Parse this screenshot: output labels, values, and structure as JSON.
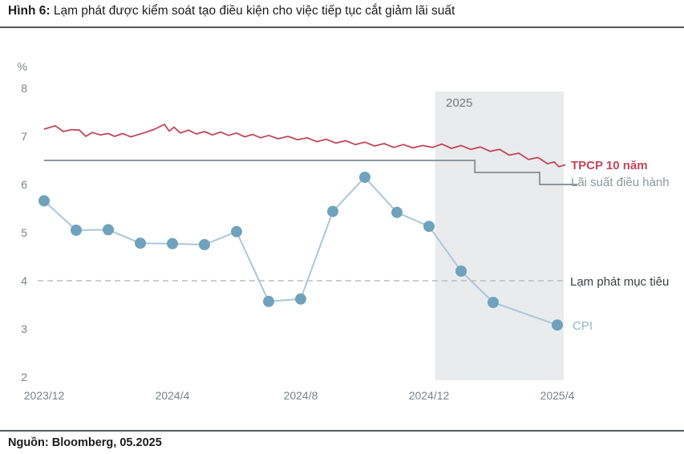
{
  "figure": {
    "label": "Hình 6:",
    "title": " Lạm phát được kiểm soát tạo điều kiện cho việc tiếp tục cắt giảm lãi suất"
  },
  "source": "Nguồn: Bloomberg, 05.2025",
  "theme": {
    "band_fill": "#e9ebed",
    "dash_color": "#b9bdc0",
    "tick_color": "#79828b",
    "rule_color": "#54585b"
  },
  "chart_data": {
    "type": "line",
    "unit_label": "%",
    "ylim": [
      2,
      8
    ],
    "y_ticks": [
      8,
      7,
      6,
      5,
      4,
      3,
      2
    ],
    "x_ticks": [
      {
        "label": "2023/12",
        "month": 0
      },
      {
        "label": "2024/4",
        "month": 4
      },
      {
        "label": "2024/8",
        "month": 8
      },
      {
        "label": "2024/12",
        "month": 12
      },
      {
        "label": "2025/4",
        "month": 16
      }
    ],
    "grid": "off",
    "legend_position": "right-inline",
    "forecast_band": {
      "label": "2025",
      "from_month": 12.19,
      "to_month": 16.2
    },
    "target_line": {
      "label": "Lạm phát mục tiêu",
      "value": 4,
      "from_month": -0.2,
      "to_month": 16.2
    },
    "series": [
      {
        "name": "TPCP 10 năm",
        "type": "line",
        "color": "#c4455a",
        "points": [
          [
            0,
            7.15
          ],
          [
            0.35,
            7.22
          ],
          [
            0.6,
            7.1
          ],
          [
            0.85,
            7.14
          ],
          [
            1.1,
            7.13
          ],
          [
            1.3,
            7.0
          ],
          [
            1.5,
            7.08
          ],
          [
            1.75,
            7.03
          ],
          [
            2,
            7.06
          ],
          [
            2.2,
            7.0
          ],
          [
            2.45,
            7.06
          ],
          [
            2.7,
            6.99
          ],
          [
            2.9,
            7.03
          ],
          [
            3.15,
            7.08
          ],
          [
            3.45,
            7.15
          ],
          [
            3.75,
            7.25
          ],
          [
            3.9,
            7.11
          ],
          [
            4.05,
            7.19
          ],
          [
            4.25,
            7.07
          ],
          [
            4.5,
            7.13
          ],
          [
            4.75,
            7.05
          ],
          [
            5,
            7.1
          ],
          [
            5.25,
            7.03
          ],
          [
            5.5,
            7.09
          ],
          [
            5.75,
            7.02
          ],
          [
            6,
            7.07
          ],
          [
            6.25,
            6.99
          ],
          [
            6.5,
            7.04
          ],
          [
            6.75,
            6.97
          ],
          [
            7,
            7.02
          ],
          [
            7.3,
            6.95
          ],
          [
            7.6,
            7.0
          ],
          [
            7.9,
            6.93
          ],
          [
            8.2,
            6.97
          ],
          [
            8.5,
            6.89
          ],
          [
            8.8,
            6.94
          ],
          [
            9.1,
            6.86
          ],
          [
            9.4,
            6.91
          ],
          [
            9.7,
            6.83
          ],
          [
            10,
            6.88
          ],
          [
            10.3,
            6.8
          ],
          [
            10.6,
            6.85
          ],
          [
            10.9,
            6.77
          ],
          [
            11.2,
            6.83
          ],
          [
            11.5,
            6.76
          ],
          [
            11.8,
            6.81
          ],
          [
            12.1,
            6.77
          ],
          [
            12.4,
            6.84
          ],
          [
            12.7,
            6.75
          ],
          [
            13,
            6.81
          ],
          [
            13.3,
            6.73
          ],
          [
            13.6,
            6.78
          ],
          [
            13.9,
            6.69
          ],
          [
            14.2,
            6.73
          ],
          [
            14.5,
            6.61
          ],
          [
            14.8,
            6.65
          ],
          [
            15.1,
            6.52
          ],
          [
            15.4,
            6.56
          ],
          [
            15.7,
            6.43
          ],
          [
            15.9,
            6.47
          ],
          [
            16.05,
            6.37
          ],
          [
            16.25,
            6.41
          ]
        ]
      },
      {
        "name": "Lãi suất điều hành",
        "type": "step",
        "color": "#8e979d",
        "steps": [
          {
            "from_month": 0,
            "to_month": 13.43,
            "value": 6.5
          },
          {
            "from_month": 13.43,
            "to_month": 15.45,
            "value": 6.25
          },
          {
            "from_month": 15.45,
            "to_month": 16.63,
            "value": 6.0
          }
        ]
      },
      {
        "name": "CPI",
        "type": "line-marker",
        "color": "#6fa2bc",
        "line_color": "#a9c8d7",
        "points": [
          [
            0,
            5.66
          ],
          [
            1,
            5.05
          ],
          [
            2,
            5.06
          ],
          [
            3,
            4.78
          ],
          [
            4,
            4.77
          ],
          [
            5,
            4.75
          ],
          [
            6,
            5.02
          ],
          [
            7,
            3.57
          ],
          [
            8,
            3.62
          ],
          [
            9,
            5.44
          ],
          [
            10,
            6.15
          ],
          [
            11,
            5.42
          ],
          [
            12,
            5.13
          ],
          [
            13,
            4.2
          ],
          [
            14,
            3.55
          ],
          [
            16,
            3.08
          ]
        ]
      }
    ]
  }
}
